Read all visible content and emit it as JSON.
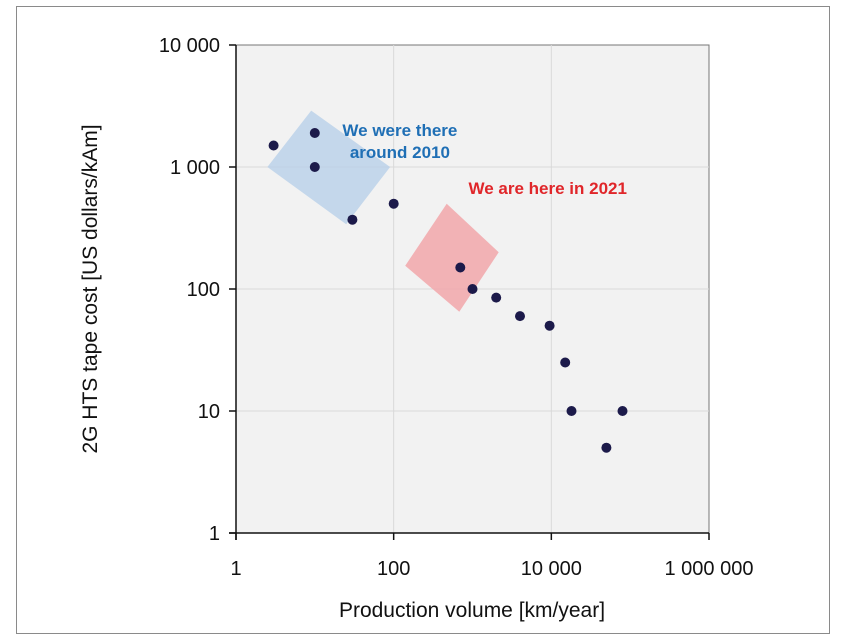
{
  "chart_data": {
    "type": "scatter",
    "title": "",
    "xlabel": "Production volume [km/year]",
    "ylabel": "2G HTS tape cost [US dollars/kAm]",
    "xscale": "log",
    "yscale": "log",
    "xlim": [
      1,
      1000000
    ],
    "ylim": [
      1,
      10000
    ],
    "grid": true,
    "x_ticks": [
      1,
      100,
      10000,
      1000000
    ],
    "x_tick_labels": [
      "1",
      "100",
      "10 000",
      "1 000 000"
    ],
    "y_ticks": [
      1,
      10,
      100,
      1000,
      10000
    ],
    "y_tick_labels": [
      "1",
      "10",
      "100",
      "1 000",
      "10 000"
    ],
    "series": [
      {
        "color": "#1c1a4a",
        "points": [
          {
            "x": 3,
            "y": 1500
          },
          {
            "x": 10,
            "y": 1900
          },
          {
            "x": 10,
            "y": 1000
          },
          {
            "x": 30,
            "y": 370
          },
          {
            "x": 100,
            "y": 500
          },
          {
            "x": 700,
            "y": 150
          },
          {
            "x": 1000,
            "y": 100
          },
          {
            "x": 2000,
            "y": 85
          },
          {
            "x": 4000,
            "y": 60
          },
          {
            "x": 9500,
            "y": 50
          },
          {
            "x": 15000,
            "y": 25
          },
          {
            "x": 18000,
            "y": 10
          },
          {
            "x": 50000,
            "y": 5
          },
          {
            "x": 80000,
            "y": 10
          }
        ]
      }
    ],
    "regions": [
      {
        "color": "#b8cfe8",
        "opacity": 0.8,
        "corners": [
          {
            "x": 2.5,
            "y": 1000
          },
          {
            "x": 9,
            "y": 2900
          },
          {
            "x": 90,
            "y": 1000
          },
          {
            "x": 25,
            "y": 340
          }
        ]
      },
      {
        "color": "#f2a7aa",
        "opacity": 0.85,
        "corners": [
          {
            "x": 140,
            "y": 155
          },
          {
            "x": 470,
            "y": 500
          },
          {
            "x": 2150,
            "y": 200
          },
          {
            "x": 680,
            "y": 65
          }
        ]
      }
    ],
    "annotations": [
      {
        "lines": [
          "We were there",
          "around 2010"
        ],
        "color": "#1f6fb5",
        "x": 120,
        "y": 1800
      },
      {
        "lines": [
          "We are here in 2021"
        ],
        "color": "#e0262a",
        "x": 9000,
        "y": 600
      }
    ]
  }
}
